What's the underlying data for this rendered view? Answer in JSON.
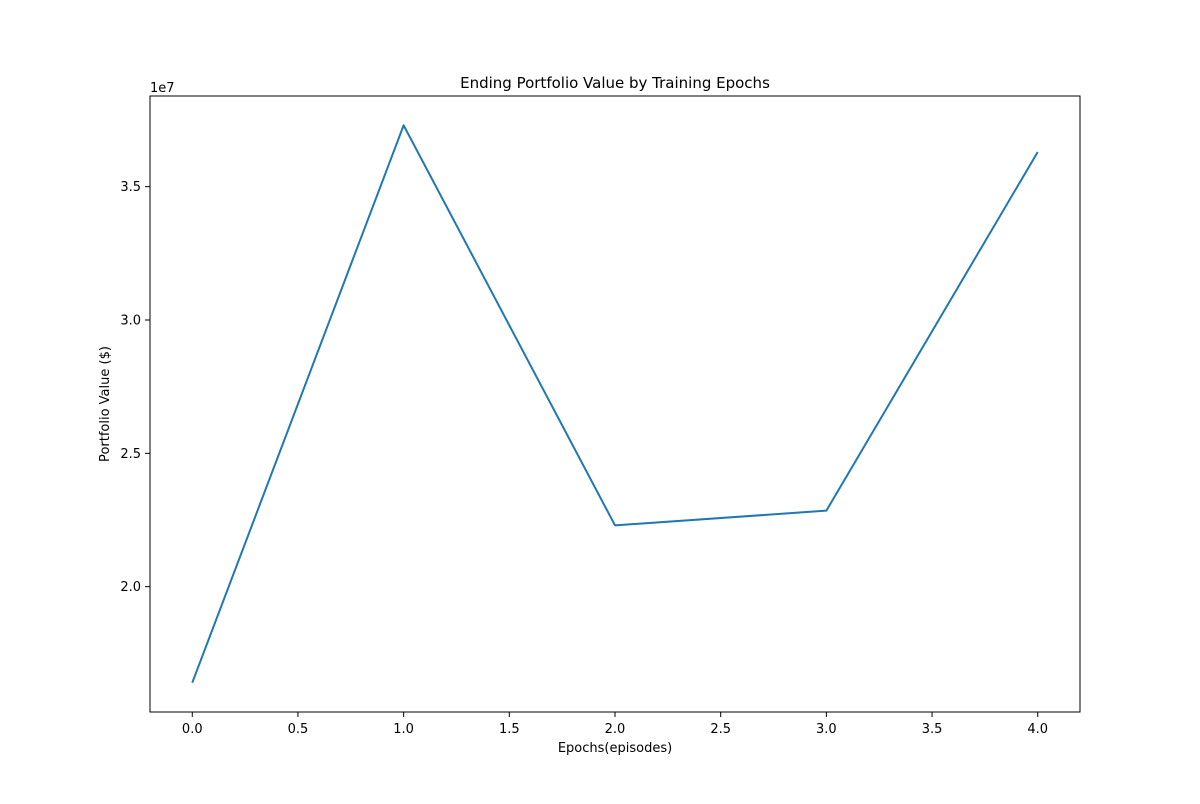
{
  "chart_data": {
    "type": "line",
    "title": "Ending Portfolio Value by Training Epochs",
    "xlabel": "Epochs(episodes)",
    "ylabel": "Portfolio Value ($)",
    "y_offset_label": "1e7",
    "x": [
      0,
      1,
      2,
      3,
      4
    ],
    "series": [
      {
        "values": [
          16400000,
          37300000,
          22300000,
          22850000,
          36300000
        ],
        "color": "#1f77b4"
      }
    ],
    "xlim": [
      -0.2,
      4.2
    ],
    "ylim": [
      15300000,
      38400000
    ],
    "xticks": [
      0.0,
      0.5,
      1.0,
      1.5,
      2.0,
      2.5,
      3.0,
      3.5,
      4.0
    ],
    "xtick_labels": [
      "0.0",
      "0.5",
      "1.0",
      "1.5",
      "2.0",
      "2.5",
      "3.0",
      "3.5",
      "4.0"
    ],
    "yticks": [
      20000000,
      25000000,
      30000000,
      35000000
    ],
    "ytick_labels": [
      "2.0",
      "2.5",
      "3.0",
      "3.5"
    ],
    "grid": false,
    "legend": "none"
  }
}
